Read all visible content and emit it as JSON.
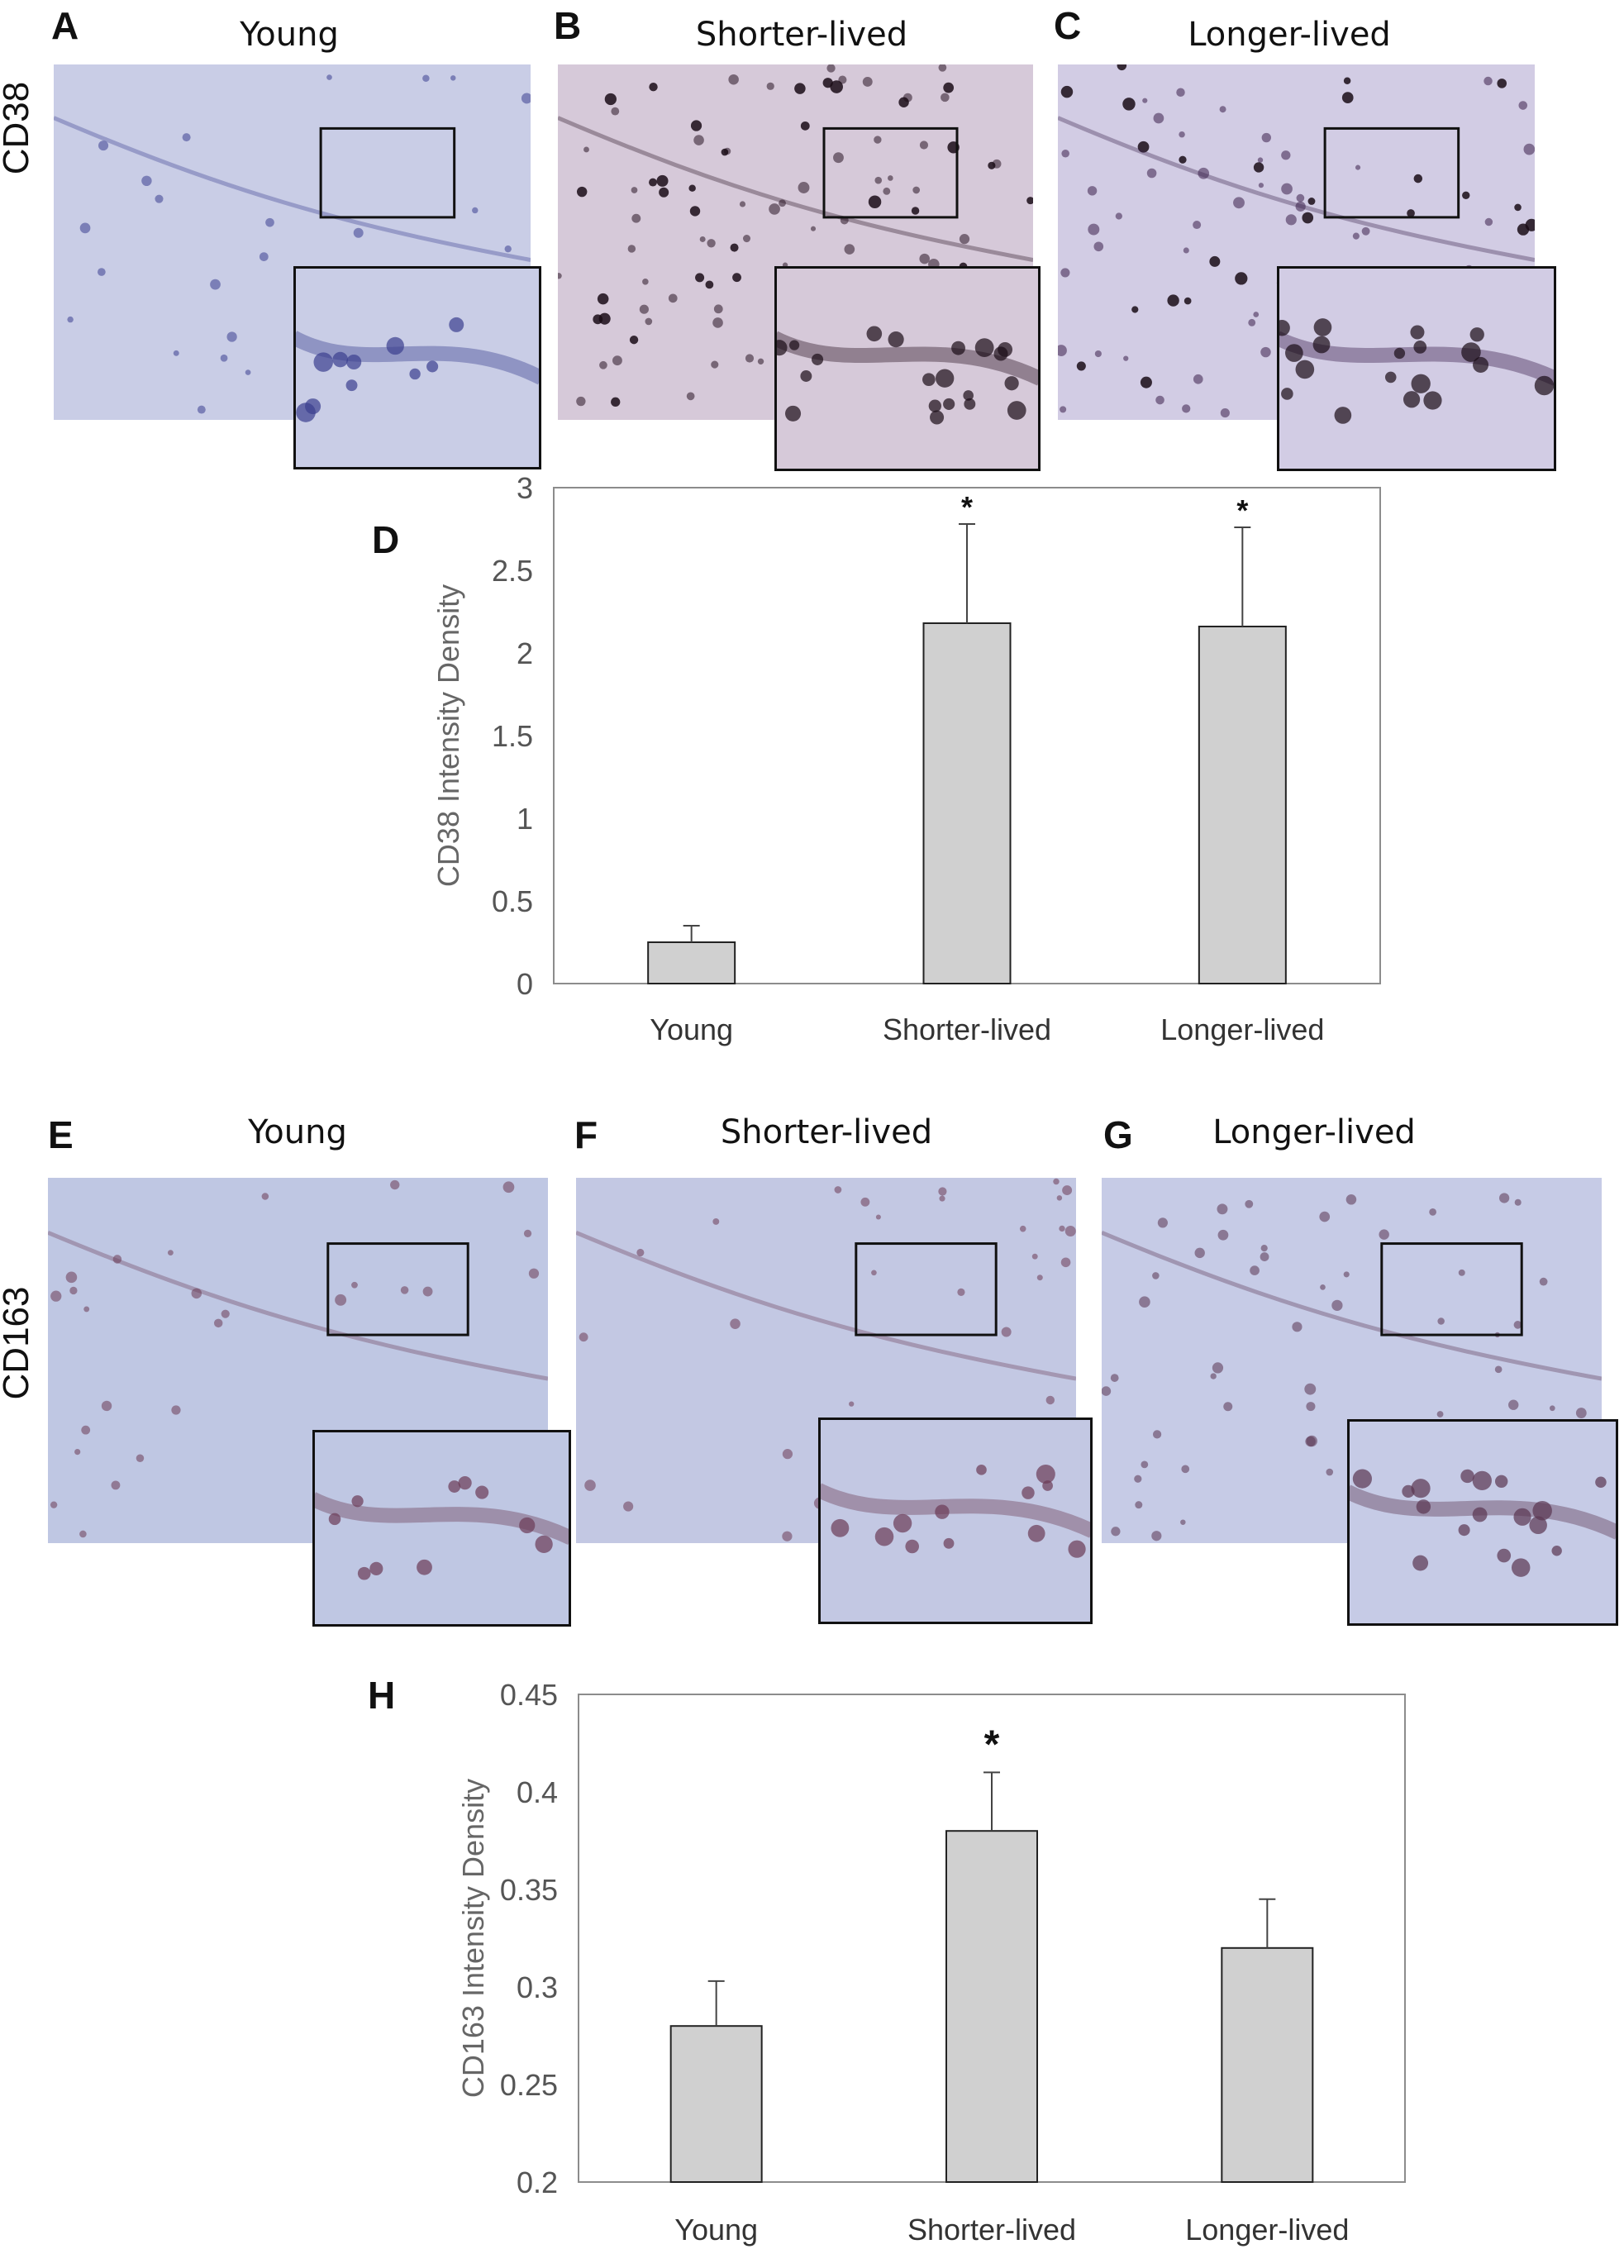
{
  "row1": {
    "label": "CD38",
    "panels": [
      {
        "letter": "A",
        "title": "Young",
        "tone": "#c9cde6",
        "stain": "#3a3f8f",
        "dots": 30,
        "dark": 0
      },
      {
        "letter": "B",
        "title": "Shorter-lived",
        "tone": "#d6c9d9",
        "stain": "#2a1424",
        "dots": 60,
        "dark": 40
      },
      {
        "letter": "C",
        "title": "Longer-lived",
        "tone": "#d2cce4",
        "stain": "#3a1f4a",
        "dots": 55,
        "dark": 35
      }
    ]
  },
  "row2": {
    "label": "CD163",
    "panels": [
      {
        "letter": "E",
        "title": "Young",
        "tone": "#bfc7e3",
        "stain": "#6b3b55",
        "dots": 30,
        "dark": 0
      },
      {
        "letter": "F",
        "title": "Shorter-lived",
        "tone": "#c3c8e3",
        "stain": "#6b3b55",
        "dots": 35,
        "dark": 0
      },
      {
        "letter": "G",
        "title": "Longer-lived",
        "tone": "#c6cbe6",
        "stain": "#5a3550",
        "dots": 50,
        "dark": 0
      }
    ]
  },
  "charts": {
    "D": {
      "letter": "D"
    },
    "H": {
      "letter": "H"
    }
  },
  "chart_data": [
    {
      "type": "bar",
      "categories": [
        "Young",
        "Shorter-lived",
        "Longer-lived"
      ],
      "values": [
        0.25,
        2.18,
        2.16
      ],
      "errors": [
        0.1,
        0.6,
        0.6
      ],
      "significance": [
        "",
        "*",
        "*"
      ],
      "ylabel": "CD38 Intensity Density",
      "ylim": [
        0,
        3
      ],
      "yticks": [
        "0",
        "0.5",
        "1",
        "1.5",
        "2",
        "2.5",
        "3"
      ],
      "bar_color": "#d0d0d0",
      "grid": false
    },
    {
      "type": "bar",
      "categories": [
        "Young",
        "Shorter-lived",
        "Longer-lived"
      ],
      "values": [
        0.28,
        0.38,
        0.32
      ],
      "errors": [
        0.023,
        0.03,
        0.025
      ],
      "significance": [
        "",
        "*",
        ""
      ],
      "ylabel": "CD163 Intensity Density",
      "ylim": [
        0.2,
        0.45
      ],
      "yticks": [
        "0.2",
        "0.25",
        "0.3",
        "0.35",
        "0.4",
        "0.45"
      ],
      "bar_color": "#d0d0d0",
      "grid": false
    }
  ]
}
